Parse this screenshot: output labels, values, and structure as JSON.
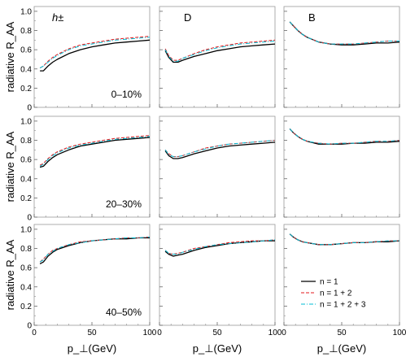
{
  "chart_data": {
    "type": "line",
    "layout": "3x3 grid of line plots",
    "ylabel": "radiative R_AA",
    "xlabel": "p_⊥(GeV)",
    "xlim": [
      0,
      100
    ],
    "ylim": [
      0,
      1.0
    ],
    "xticks": [
      "0",
      "50",
      "100"
    ],
    "yticks": [
      "0",
      "0.2",
      "0.4",
      "0.6",
      "0.8",
      "1.0"
    ],
    "grid": false,
    "legend": {
      "placement": "bottom-right of bottom-right panel",
      "entries": [
        {
          "label": "n = 1",
          "color": "#000000",
          "style": "solid"
        },
        {
          "label": "n = 1 + 2",
          "color": "#e41a1c",
          "style": "dashed"
        },
        {
          "label": "n = 1 + 2 + 3",
          "color": "#00bcd4",
          "style": "dashdot"
        }
      ]
    },
    "columns": [
      "h±",
      "D",
      "B"
    ],
    "rows": [
      "0–10%",
      "20–30%",
      "40–50%"
    ],
    "panels": [
      [
        {
          "x": [
            5,
            8,
            12,
            16,
            20,
            30,
            40,
            50,
            60,
            70,
            80,
            90,
            100
          ],
          "series": [
            {
              "name": "n = 1",
              "values": [
                0.38,
                0.38,
                0.43,
                0.47,
                0.5,
                0.56,
                0.6,
                0.63,
                0.65,
                0.67,
                0.68,
                0.69,
                0.7
              ]
            },
            {
              "name": "n = 1 + 2",
              "values": [
                0.41,
                0.43,
                0.48,
                0.52,
                0.55,
                0.61,
                0.65,
                0.67,
                0.69,
                0.71,
                0.72,
                0.73,
                0.74
              ]
            },
            {
              "name": "n = 1 + 2 + 3",
              "values": [
                0.41,
                0.43,
                0.47,
                0.51,
                0.54,
                0.6,
                0.64,
                0.66,
                0.68,
                0.7,
                0.71,
                0.72,
                0.73
              ]
            }
          ]
        },
        {
          "x": [
            5,
            8,
            12,
            16,
            20,
            30,
            40,
            50,
            60,
            70,
            80,
            90,
            100
          ],
          "series": [
            {
              "name": "n = 1",
              "values": [
                0.59,
                0.52,
                0.47,
                0.47,
                0.49,
                0.53,
                0.56,
                0.59,
                0.61,
                0.63,
                0.64,
                0.65,
                0.66
              ]
            },
            {
              "name": "n = 1 + 2",
              "values": [
                0.61,
                0.54,
                0.49,
                0.49,
                0.51,
                0.56,
                0.6,
                0.63,
                0.65,
                0.67,
                0.68,
                0.69,
                0.7
              ]
            },
            {
              "name": "n = 1 + 2 + 3",
              "values": [
                0.6,
                0.53,
                0.48,
                0.48,
                0.51,
                0.55,
                0.59,
                0.62,
                0.64,
                0.66,
                0.67,
                0.68,
                0.69
              ]
            }
          ]
        },
        {
          "x": [
            5,
            8,
            12,
            16,
            20,
            30,
            40,
            50,
            60,
            70,
            80,
            90,
            100
          ],
          "series": [
            {
              "name": "n = 1",
              "values": [
                0.89,
                0.85,
                0.8,
                0.76,
                0.73,
                0.68,
                0.66,
                0.65,
                0.65,
                0.66,
                0.67,
                0.67,
                0.68
              ]
            },
            {
              "name": "n = 1 + 2",
              "values": [
                0.89,
                0.85,
                0.8,
                0.76,
                0.73,
                0.68,
                0.66,
                0.66,
                0.66,
                0.67,
                0.68,
                0.69,
                0.69
              ]
            },
            {
              "name": "n = 1 + 2 + 3",
              "values": [
                0.89,
                0.85,
                0.8,
                0.76,
                0.73,
                0.68,
                0.66,
                0.66,
                0.66,
                0.67,
                0.68,
                0.69,
                0.69
              ]
            }
          ]
        }
      ],
      [
        {
          "x": [
            5,
            8,
            12,
            16,
            20,
            30,
            40,
            50,
            60,
            70,
            80,
            90,
            100
          ],
          "series": [
            {
              "name": "n = 1",
              "values": [
                0.52,
                0.53,
                0.58,
                0.62,
                0.65,
                0.7,
                0.74,
                0.76,
                0.78,
                0.8,
                0.81,
                0.82,
                0.83
              ]
            },
            {
              "name": "n = 1 + 2",
              "values": [
                0.54,
                0.56,
                0.61,
                0.65,
                0.68,
                0.73,
                0.76,
                0.78,
                0.8,
                0.82,
                0.83,
                0.84,
                0.85
              ]
            },
            {
              "name": "n = 1 + 2 + 3",
              "values": [
                0.53,
                0.55,
                0.6,
                0.64,
                0.67,
                0.72,
                0.75,
                0.77,
                0.79,
                0.81,
                0.82,
                0.83,
                0.84
              ]
            }
          ]
        },
        {
          "x": [
            5,
            8,
            12,
            16,
            20,
            30,
            40,
            50,
            60,
            70,
            80,
            90,
            100
          ],
          "series": [
            {
              "name": "n = 1",
              "values": [
                0.69,
                0.64,
                0.61,
                0.61,
                0.62,
                0.66,
                0.69,
                0.72,
                0.74,
                0.75,
                0.76,
                0.77,
                0.78
              ]
            },
            {
              "name": "n = 1 + 2",
              "values": [
                0.7,
                0.66,
                0.63,
                0.63,
                0.64,
                0.68,
                0.72,
                0.74,
                0.76,
                0.77,
                0.78,
                0.79,
                0.8
              ]
            },
            {
              "name": "n = 1 + 2 + 3",
              "values": [
                0.7,
                0.65,
                0.63,
                0.63,
                0.64,
                0.68,
                0.71,
                0.74,
                0.76,
                0.77,
                0.78,
                0.79,
                0.8
              ]
            }
          ]
        },
        {
          "x": [
            5,
            8,
            12,
            16,
            20,
            30,
            40,
            50,
            60,
            70,
            80,
            90,
            100
          ],
          "series": [
            {
              "name": "n = 1",
              "values": [
                0.92,
                0.88,
                0.84,
                0.81,
                0.79,
                0.76,
                0.76,
                0.76,
                0.77,
                0.77,
                0.78,
                0.78,
                0.79
              ]
            },
            {
              "name": "n = 1 + 2",
              "values": [
                0.92,
                0.88,
                0.84,
                0.81,
                0.79,
                0.77,
                0.76,
                0.77,
                0.77,
                0.78,
                0.79,
                0.79,
                0.8
              ]
            },
            {
              "name": "n = 1 + 2 + 3",
              "values": [
                0.92,
                0.88,
                0.84,
                0.81,
                0.79,
                0.77,
                0.76,
                0.77,
                0.77,
                0.78,
                0.79,
                0.79,
                0.8
              ]
            }
          ]
        }
      ],
      [
        {
          "x": [
            5,
            8,
            12,
            16,
            20,
            30,
            40,
            50,
            60,
            70,
            80,
            90,
            100
          ],
          "series": [
            {
              "name": "n = 1",
              "values": [
                0.64,
                0.66,
                0.72,
                0.76,
                0.79,
                0.83,
                0.86,
                0.88,
                0.89,
                0.9,
                0.9,
                0.91,
                0.91
              ]
            },
            {
              "name": "n = 1 + 2",
              "values": [
                0.66,
                0.69,
                0.74,
                0.78,
                0.8,
                0.84,
                0.87,
                0.88,
                0.89,
                0.9,
                0.91,
                0.91,
                0.92
              ]
            },
            {
              "name": "n = 1 + 2 + 3",
              "values": [
                0.66,
                0.68,
                0.74,
                0.77,
                0.8,
                0.84,
                0.86,
                0.88,
                0.89,
                0.9,
                0.91,
                0.91,
                0.92
              ]
            }
          ]
        },
        {
          "x": [
            5,
            8,
            12,
            16,
            20,
            30,
            40,
            50,
            60,
            70,
            80,
            90,
            100
          ],
          "series": [
            {
              "name": "n = 1",
              "values": [
                0.77,
                0.74,
                0.72,
                0.73,
                0.74,
                0.78,
                0.81,
                0.83,
                0.85,
                0.86,
                0.87,
                0.88,
                0.88
              ]
            },
            {
              "name": "n = 1 + 2",
              "values": [
                0.78,
                0.75,
                0.74,
                0.75,
                0.76,
                0.8,
                0.82,
                0.84,
                0.86,
                0.87,
                0.88,
                0.88,
                0.89
              ]
            },
            {
              "name": "n = 1 + 2 + 3",
              "values": [
                0.78,
                0.75,
                0.74,
                0.74,
                0.76,
                0.79,
                0.82,
                0.84,
                0.85,
                0.86,
                0.87,
                0.88,
                0.89
              ]
            }
          ]
        },
        {
          "x": [
            5,
            8,
            12,
            16,
            20,
            30,
            40,
            50,
            60,
            70,
            80,
            90,
            100
          ],
          "series": [
            {
              "name": "n = 1",
              "values": [
                0.95,
                0.92,
                0.89,
                0.87,
                0.86,
                0.84,
                0.84,
                0.85,
                0.86,
                0.86,
                0.87,
                0.87,
                0.88
              ]
            },
            {
              "name": "n = 1 + 2",
              "values": [
                0.95,
                0.92,
                0.89,
                0.87,
                0.86,
                0.84,
                0.84,
                0.85,
                0.86,
                0.86,
                0.87,
                0.88,
                0.88
              ]
            },
            {
              "name": "n = 1 + 2 + 3",
              "values": [
                0.95,
                0.92,
                0.89,
                0.87,
                0.86,
                0.84,
                0.84,
                0.85,
                0.86,
                0.86,
                0.87,
                0.88,
                0.88
              ]
            }
          ]
        }
      ]
    ]
  }
}
